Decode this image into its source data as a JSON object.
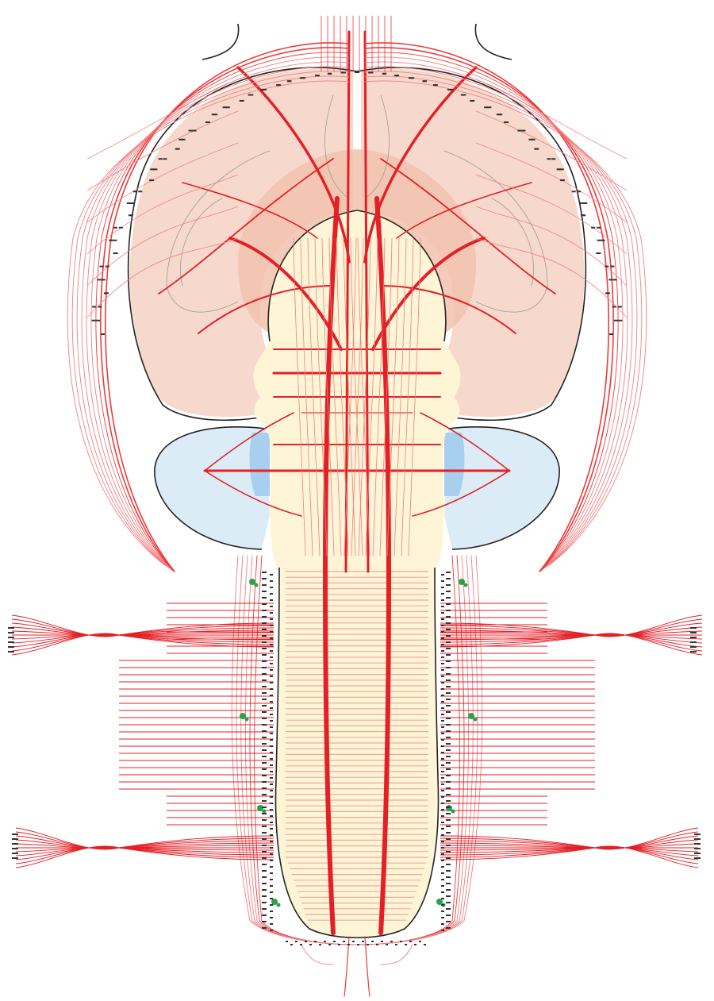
{
  "diagram": {
    "type": "neural-circuit-map",
    "colors": {
      "tract": "#e41f26",
      "tract_light": "#f08080",
      "cerebrum_fill": "#f6d9cc",
      "cerebrum_inner_fill": "#f2c2ae",
      "brainstem_fill": "#fdf5d6",
      "cerebellum_fill": "#dcecf7",
      "cerebellum_accent": "#a9cfee",
      "ganglion": "#2aa148",
      "outline": "#222222"
    },
    "regions": [
      {
        "id": "cerebral-hemisphere-left"
      },
      {
        "id": "cerebral-hemisphere-right"
      },
      {
        "id": "basal-region"
      },
      {
        "id": "brainstem"
      },
      {
        "id": "cerebellum-left"
      },
      {
        "id": "cerebellum-right"
      },
      {
        "id": "spinal-cord"
      }
    ]
  }
}
